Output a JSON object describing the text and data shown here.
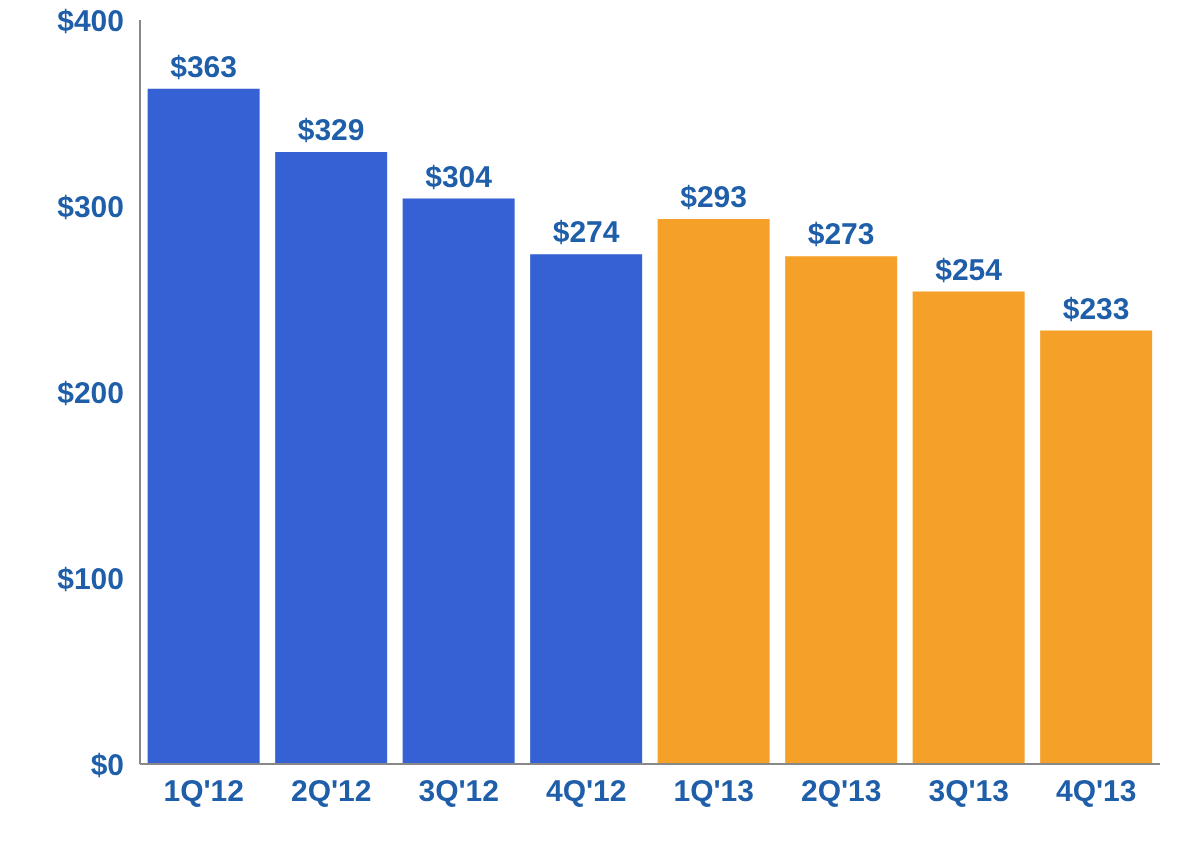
{
  "chart_data": {
    "type": "bar",
    "categories": [
      "1Q'12",
      "2Q'12",
      "3Q'12",
      "4Q'12",
      "1Q'13",
      "2Q'13",
      "3Q'13",
      "4Q'13"
    ],
    "values": [
      363,
      329,
      304,
      274,
      293,
      273,
      254,
      233
    ],
    "colors": [
      "#3561d4",
      "#3561d4",
      "#3561d4",
      "#3561d4",
      "#f5a129",
      "#f5a129",
      "#f5a129",
      "#f5a129"
    ],
    "value_labels": [
      "$363",
      "$329",
      "$304",
      "$274",
      "$293",
      "$273",
      "$254",
      "$233"
    ],
    "ylim": [
      0,
      400
    ],
    "yticks": [
      {
        "value": 0,
        "label": "$0"
      },
      {
        "value": 100,
        "label": "$100"
      },
      {
        "value": 200,
        "label": "$200"
      },
      {
        "value": 300,
        "label": "$300"
      },
      {
        "value": 400,
        "label": "$400"
      }
    ],
    "grid": false,
    "legend": false
  }
}
